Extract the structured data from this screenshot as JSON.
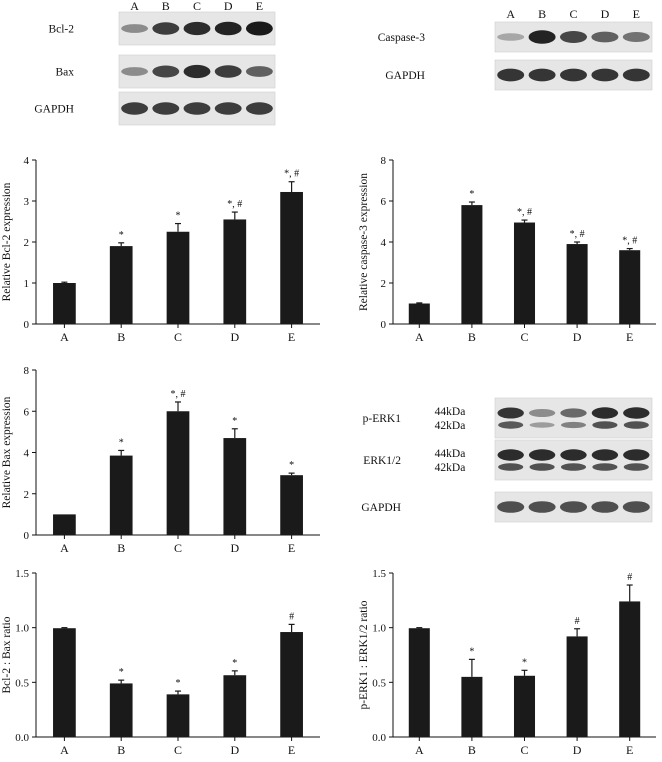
{
  "blots": {
    "bcl2_bax": {
      "lanes": [
        "A",
        "B",
        "C",
        "D",
        "E"
      ],
      "rows": [
        {
          "name": "Bcl-2",
          "intensity": [
            0.35,
            0.8,
            0.9,
            0.95,
            1.0
          ]
        },
        {
          "name": "Bax",
          "intensity": [
            0.35,
            0.75,
            0.9,
            0.8,
            0.6
          ]
        },
        {
          "name": "GAPDH",
          "intensity": [
            0.8,
            0.8,
            0.8,
            0.8,
            0.8
          ]
        }
      ]
    },
    "caspase3": {
      "lanes": [
        "A",
        "B",
        "C",
        "D",
        "E"
      ],
      "rows": [
        {
          "name": "Caspase-3",
          "intensity": [
            0.2,
            0.95,
            0.75,
            0.6,
            0.5
          ]
        },
        {
          "name": "GAPDH",
          "intensity": [
            0.85,
            0.85,
            0.85,
            0.85,
            0.85
          ]
        }
      ]
    },
    "erk": {
      "lanes": [
        "A",
        "B",
        "C",
        "D",
        "E"
      ],
      "kda_top": "44kDa",
      "kda_bottom": "42kDa",
      "rows": [
        {
          "name": "p-ERK1",
          "kda": true,
          "intensity": [
            0.85,
            0.35,
            0.55,
            0.9,
            0.9
          ]
        },
        {
          "name": "ERK1/2",
          "kda": true,
          "intensity": [
            0.9,
            0.9,
            0.9,
            0.9,
            0.9
          ]
        },
        {
          "name": "GAPDH",
          "intensity": [
            0.7,
            0.7,
            0.7,
            0.7,
            0.7
          ]
        }
      ]
    }
  },
  "chart_data": [
    {
      "type": "bar",
      "categories": [
        "A",
        "B",
        "C",
        "D",
        "E"
      ],
      "values": [
        1.0,
        1.9,
        2.25,
        2.55,
        3.22
      ],
      "errors": [
        0.02,
        0.08,
        0.2,
        0.18,
        0.25
      ],
      "significance": [
        "",
        "*",
        "*",
        "*, #",
        "*, #"
      ],
      "ylabel": "Relative Bcl-2 expression",
      "ylim": [
        0,
        4
      ],
      "yticks": [
        0,
        1,
        2,
        3,
        4
      ],
      "ytick_labels": [
        "0",
        "1",
        "2",
        "3",
        "4"
      ]
    },
    {
      "type": "bar",
      "categories": [
        "A",
        "B",
        "C",
        "D",
        "E"
      ],
      "values": [
        1.0,
        5.8,
        4.95,
        3.9,
        3.6
      ],
      "errors": [
        0.03,
        0.15,
        0.12,
        0.1,
        0.08
      ],
      "significance": [
        "",
        "*",
        "*, #",
        "*, #",
        "*, #"
      ],
      "ylabel": "Relative caspase-3 expression",
      "ylim": [
        0,
        8
      ],
      "yticks": [
        0,
        2,
        4,
        6,
        8
      ],
      "ytick_labels": [
        "0",
        "2",
        "4",
        "6",
        "8"
      ]
    },
    {
      "type": "bar",
      "categories": [
        "A",
        "B",
        "C",
        "D",
        "E"
      ],
      "values": [
        1.0,
        3.85,
        6.0,
        4.7,
        2.9
      ],
      "errors": [
        0.0,
        0.25,
        0.45,
        0.45,
        0.1
      ],
      "significance": [
        "",
        "*",
        "*, #",
        "*",
        "*"
      ],
      "ylabel": "Relative Bax expression",
      "ylim": [
        0,
        8
      ],
      "yticks": [
        0,
        2,
        4,
        6,
        8
      ],
      "ytick_labels": [
        "0",
        "2",
        "4",
        "6",
        "8"
      ]
    },
    {
      "type": "bar",
      "categories": [
        "A",
        "B",
        "C",
        "D",
        "E"
      ],
      "values": [
        0.995,
        0.49,
        0.39,
        0.565,
        0.96
      ],
      "errors": [
        0.005,
        0.03,
        0.03,
        0.04,
        0.07
      ],
      "significance": [
        "",
        "*",
        "*",
        "*",
        "#"
      ],
      "ylabel": "Bcl-2 : Bax ratio",
      "ylim": [
        0,
        1.5
      ],
      "yticks": [
        0,
        0.5,
        1.0,
        1.5
      ],
      "ytick_labels": [
        "0.0",
        "0.5",
        "1.0",
        "1.5"
      ]
    },
    {
      "type": "bar",
      "categories": [
        "A",
        "B",
        "C",
        "D",
        "E"
      ],
      "values": [
        0.995,
        0.55,
        0.56,
        0.92,
        1.24
      ],
      "errors": [
        0.005,
        0.16,
        0.05,
        0.07,
        0.15
      ],
      "significance": [
        "",
        "*",
        "*",
        "#",
        "#"
      ],
      "ylabel": "p-ERK1 : ERK1/2 ratio",
      "ylim": [
        0,
        1.5
      ],
      "yticks": [
        0,
        0.5,
        1.0,
        1.5
      ],
      "ytick_labels": [
        "0.0",
        "0.5",
        "1.0",
        "1.5"
      ]
    }
  ]
}
